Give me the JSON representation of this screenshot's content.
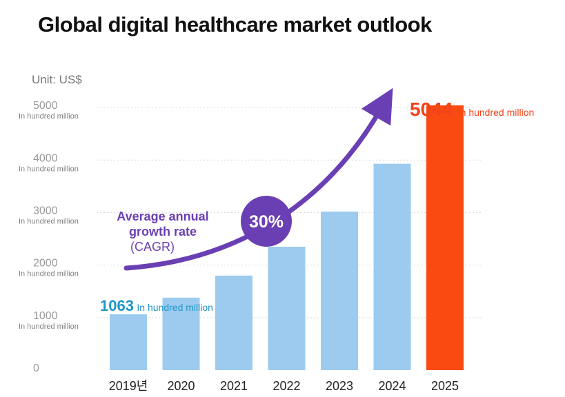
{
  "title": "Global digital healthcare market outlook",
  "unit_label": "Unit: US$",
  "cagr": {
    "label_lines": [
      "Average annual",
      "growth rate",
      "(CAGR)"
    ],
    "value": "30%"
  },
  "annotations": {
    "first": {
      "value": "1063",
      "unit": "In hundred million"
    },
    "last": {
      "value": "5044",
      "unit": "In hundred million"
    }
  },
  "colors": {
    "bar": "#9ccbef",
    "highlight": "#fa4a12",
    "arrow": "#6a3fb3",
    "cagr_text": "#6a3fb3",
    "first_label": "#1f97c7",
    "last_label": "#f2441a",
    "grid": "#d9d9d9"
  },
  "chart_data": {
    "type": "bar",
    "title": "Global digital healthcare market outlook",
    "xlabel": "",
    "ylabel": "Unit: US$",
    "categories": [
      "2019년",
      "2020",
      "2021",
      "2022",
      "2023",
      "2024",
      "2025"
    ],
    "values": [
      1063,
      1380,
      1800,
      2350,
      3020,
      3930,
      5044
    ],
    "highlight_index": 6,
    "ylim": [
      0,
      5500
    ],
    "yticks": [
      0,
      1000,
      2000,
      3000,
      4000,
      5000
    ],
    "ytick_sublabel": "In hundred million",
    "grid": true
  }
}
